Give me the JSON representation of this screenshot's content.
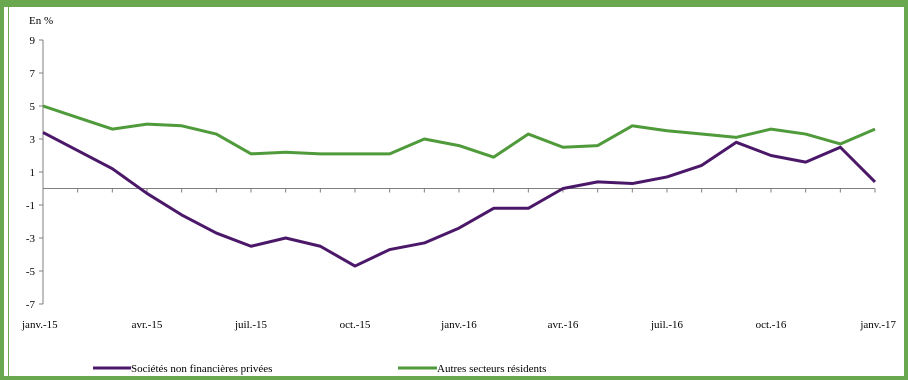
{
  "chart_data": {
    "type": "line",
    "unit_label": "En %",
    "ylim": [
      -7,
      9
    ],
    "y_ticks": [
      9,
      7,
      5,
      3,
      1,
      -1,
      -3,
      -5,
      -7
    ],
    "x_tick_labels": [
      "janv.-15",
      "avr.-15",
      "juil.-15",
      "oct.-15",
      "janv.-16",
      "avr.-16",
      "juil.-16",
      "oct.-16",
      "janv.-17"
    ],
    "x_labels_index": [
      0,
      3,
      6,
      9,
      12,
      15,
      18,
      21,
      24
    ],
    "grid": false,
    "legend_position": "bottom",
    "series": [
      {
        "name": "Sociétés non financières privées",
        "color": "#4b1869",
        "values": [
          3.4,
          2.3,
          1.2,
          -0.3,
          -1.6,
          -2.7,
          -3.5,
          -3.0,
          -3.5,
          -4.7,
          -3.7,
          -3.3,
          -2.4,
          -1.2,
          -1.2,
          0.0,
          0.4,
          0.3,
          0.7,
          1.4,
          2.8,
          2.0,
          1.6,
          2.5,
          0.4
        ]
      },
      {
        "name": "Autres secteurs résidents",
        "color": "#4f9a3a",
        "values": [
          5.0,
          4.3,
          3.6,
          3.9,
          3.8,
          3.3,
          2.1,
          2.2,
          2.1,
          2.1,
          2.1,
          3.0,
          2.6,
          1.9,
          3.3,
          2.5,
          2.6,
          3.8,
          3.5,
          3.3,
          3.1,
          3.6,
          3.3,
          2.7,
          3.6
        ]
      }
    ]
  }
}
